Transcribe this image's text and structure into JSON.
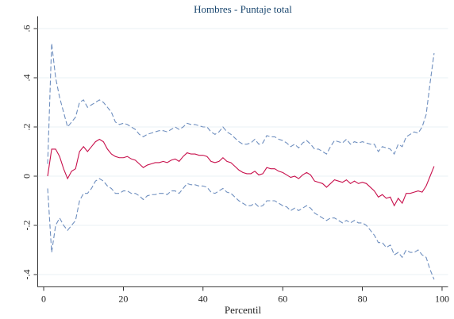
{
  "chart_data": {
    "type": "line",
    "title": "Hombres - Puntaje total",
    "x_label": "Percentil",
    "x": [
      1,
      2,
      3,
      4,
      5,
      6,
      7,
      8,
      9,
      10,
      11,
      12,
      13,
      14,
      15,
      16,
      17,
      18,
      19,
      20,
      21,
      22,
      23,
      24,
      25,
      26,
      27,
      28,
      29,
      30,
      31,
      32,
      33,
      34,
      35,
      36,
      37,
      38,
      39,
      40,
      41,
      42,
      43,
      44,
      45,
      46,
      47,
      48,
      49,
      50,
      51,
      52,
      53,
      54,
      55,
      56,
      57,
      58,
      59,
      60,
      61,
      62,
      63,
      64,
      65,
      66,
      67,
      68,
      69,
      70,
      71,
      72,
      73,
      74,
      75,
      76,
      77,
      78,
      79,
      80,
      81,
      82,
      83,
      84,
      85,
      86,
      87,
      88,
      89,
      90,
      91,
      92,
      93,
      94,
      95,
      96,
      97,
      98
    ],
    "series": [
      {
        "color": "#6f8fbf",
        "dash": true,
        "values": [
          0.05,
          0.54,
          0.4,
          0.32,
          0.26,
          0.2,
          0.22,
          0.24,
          0.3,
          0.31,
          0.28,
          0.29,
          0.3,
          0.31,
          0.3,
          0.28,
          0.26,
          0.22,
          0.21,
          0.215,
          0.21,
          0.2,
          0.19,
          0.17,
          0.16,
          0.17,
          0.175,
          0.18,
          0.185,
          0.185,
          0.18,
          0.19,
          0.2,
          0.19,
          0.2,
          0.215,
          0.21,
          0.21,
          0.205,
          0.2,
          0.2,
          0.18,
          0.17,
          0.18,
          0.2,
          0.18,
          0.17,
          0.155,
          0.14,
          0.13,
          0.13,
          0.135,
          0.15,
          0.13,
          0.135,
          0.165,
          0.16,
          0.16,
          0.15,
          0.145,
          0.135,
          0.12,
          0.13,
          0.115,
          0.135,
          0.145,
          0.13,
          0.11,
          0.11,
          0.1,
          0.09,
          0.12,
          0.145,
          0.14,
          0.135,
          0.15,
          0.13,
          0.14,
          0.135,
          0.14,
          0.135,
          0.13,
          0.13,
          0.1,
          0.12,
          0.115,
          0.11,
          0.09,
          0.13,
          0.12,
          0.16,
          0.17,
          0.18,
          0.175,
          0.2,
          0.25,
          0.38,
          0.5
        ]
      },
      {
        "color": "#c8104c",
        "dash": false,
        "values": [
          0,
          0.11,
          0.11,
          0.08,
          0.03,
          -0.01,
          0.02,
          0.03,
          0.1,
          0.12,
          0.1,
          0.12,
          0.14,
          0.15,
          0.14,
          0.11,
          0.09,
          0.08,
          0.075,
          0.075,
          0.08,
          0.07,
          0.065,
          0.05,
          0.035,
          0.045,
          0.05,
          0.055,
          0.055,
          0.06,
          0.055,
          0.065,
          0.07,
          0.06,
          0.08,
          0.095,
          0.09,
          0.09,
          0.085,
          0.085,
          0.08,
          0.06,
          0.055,
          0.06,
          0.075,
          0.06,
          0.055,
          0.04,
          0.025,
          0.015,
          0.01,
          0.01,
          0.02,
          0.005,
          0.01,
          0.035,
          0.03,
          0.03,
          0.02,
          0.015,
          0.005,
          -0.005,
          0,
          -0.01,
          0.005,
          0.015,
          0.005,
          -0.02,
          -0.025,
          -0.03,
          -0.045,
          -0.03,
          -0.015,
          -0.02,
          -0.025,
          -0.015,
          -0.03,
          -0.02,
          -0.03,
          -0.025,
          -0.03,
          -0.045,
          -0.06,
          -0.085,
          -0.075,
          -0.09,
          -0.085,
          -0.12,
          -0.09,
          -0.11,
          -0.07,
          -0.07,
          -0.065,
          -0.06,
          -0.065,
          -0.04,
          0,
          0.04
        ]
      },
      {
        "color": "#6f8fbf",
        "dash": true,
        "values": [
          -0.05,
          -0.31,
          -0.2,
          -0.17,
          -0.2,
          -0.22,
          -0.2,
          -0.18,
          -0.1,
          -0.07,
          -0.07,
          -0.05,
          -0.02,
          -0.01,
          -0.02,
          -0.04,
          -0.05,
          -0.07,
          -0.07,
          -0.06,
          -0.06,
          -0.07,
          -0.07,
          -0.08,
          -0.095,
          -0.08,
          -0.075,
          -0.075,
          -0.07,
          -0.07,
          -0.075,
          -0.06,
          -0.06,
          -0.07,
          -0.05,
          -0.03,
          -0.035,
          -0.035,
          -0.04,
          -0.04,
          -0.045,
          -0.065,
          -0.07,
          -0.06,
          -0.05,
          -0.065,
          -0.07,
          -0.085,
          -0.1,
          -0.11,
          -0.12,
          -0.12,
          -0.11,
          -0.125,
          -0.12,
          -0.1,
          -0.1,
          -0.1,
          -0.11,
          -0.12,
          -0.125,
          -0.14,
          -0.13,
          -0.14,
          -0.13,
          -0.12,
          -0.13,
          -0.15,
          -0.16,
          -0.17,
          -0.18,
          -0.17,
          -0.17,
          -0.18,
          -0.19,
          -0.18,
          -0.19,
          -0.18,
          -0.19,
          -0.19,
          -0.2,
          -0.22,
          -0.24,
          -0.27,
          -0.27,
          -0.29,
          -0.28,
          -0.32,
          -0.31,
          -0.33,
          -0.3,
          -0.31,
          -0.31,
          -0.3,
          -0.32,
          -0.33,
          -0.38,
          -0.42
        ]
      }
    ],
    "xlim": [
      -1.5,
      101.5
    ],
    "xticks": [
      0,
      20,
      40,
      60,
      80,
      100
    ],
    "ylim": [
      -0.45,
      0.65
    ],
    "yticks": [
      {
        "value": -0.4,
        "label": "-.4"
      },
      {
        "value": -0.2,
        "label": "-.2"
      },
      0,
      {
        "value": 0.2,
        "label": ".2"
      },
      {
        "value": 0.4,
        "label": ".4"
      },
      {
        "value": 0.6,
        "label": ".6"
      }
    ],
    "grid": true
  }
}
